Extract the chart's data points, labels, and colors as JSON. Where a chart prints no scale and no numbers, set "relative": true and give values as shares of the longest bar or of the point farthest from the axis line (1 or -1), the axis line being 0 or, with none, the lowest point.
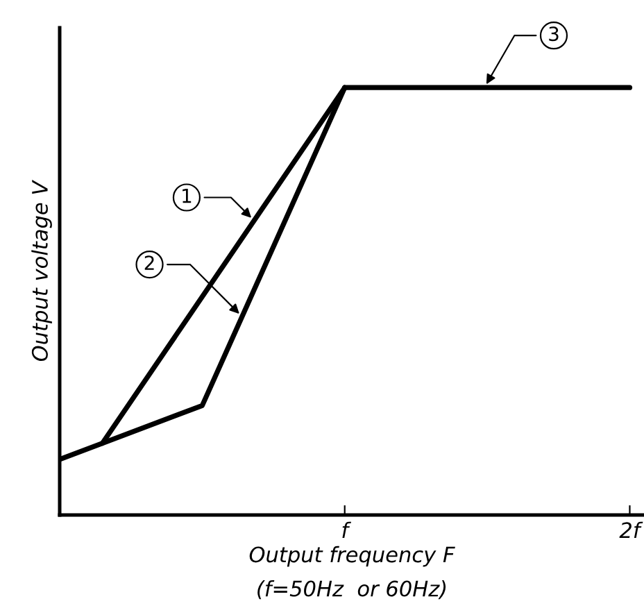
{
  "chart_data": {
    "type": "line",
    "relative": true,
    "xlabel": "Output frequency F",
    "ylabel": "Output voltage V",
    "categories": [
      null,
      null,
      null,
      null,
      null,
      null,
      null,
      null,
      null,
      null,
      null,
      null,
      null,
      null,
      null,
      null,
      null,
      null,
      null,
      null,
      "f",
      null,
      null,
      null,
      null,
      null,
      null,
      null,
      null,
      null,
      null,
      null,
      null,
      null,
      null,
      null,
      null,
      null,
      null,
      null,
      "2f"
    ],
    "series": [
      {
        "color": "#000000",
        "values": [
          0.13,
          null,
          null,
          0.168,
          null,
          null,
          null,
          null,
          null,
          null,
          null,
          null,
          null,
          null,
          null,
          null,
          null,
          null,
          null,
          null,
          1,
          null,
          null,
          null,
          null,
          null,
          null,
          null,
          null,
          null,
          null,
          null,
          null,
          null,
          null,
          null,
          null,
          null,
          null,
          null,
          null
        ]
      },
      {
        "color": "#000000",
        "values": [
          null,
          null,
          null,
          0.168,
          null,
          null,
          null,
          null,
          null,
          null,
          0.256,
          null,
          null,
          null,
          null,
          null,
          null,
          null,
          null,
          null,
          1,
          null,
          null,
          null,
          null,
          null,
          null,
          null,
          null,
          null,
          null,
          null,
          null,
          null,
          null,
          null,
          null,
          null,
          null,
          null,
          null
        ]
      },
      {
        "color": "#000000",
        "values": [
          null,
          null,
          null,
          null,
          null,
          null,
          null,
          null,
          null,
          null,
          null,
          null,
          null,
          null,
          null,
          null,
          null,
          null,
          null,
          null,
          1,
          null,
          null,
          null,
          null,
          null,
          null,
          null,
          null,
          null,
          null,
          null,
          null,
          null,
          null,
          null,
          null,
          null,
          null,
          null,
          1
        ]
      }
    ],
    "annotations": [
      "1",
      "2",
      "3",
      "(f=50Hz  or 60Hz)"
    ],
    "grid": false,
    "legend": false,
    "marker": "none",
    "line_style": "solid"
  }
}
